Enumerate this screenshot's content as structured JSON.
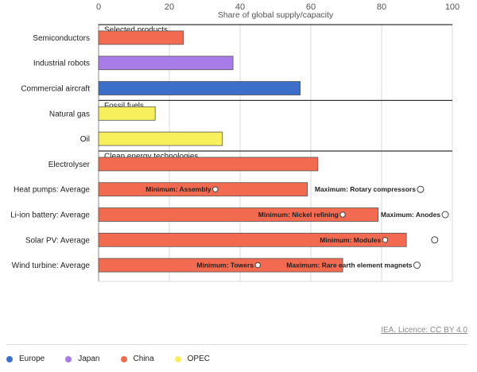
{
  "chart_data": {
    "type": "bar",
    "orientation": "horizontal",
    "xlabel": "Share of global supply/capacity",
    "xlim": [
      0,
      100
    ],
    "xticks": [
      0,
      20,
      40,
      60,
      80,
      100
    ],
    "grid": true,
    "groups": [
      {
        "label": "Selected products",
        "items": [
          {
            "category": "Semiconductors",
            "value": 24,
            "region": "China"
          },
          {
            "category": "Industrial robots",
            "value": 38,
            "region": "Japan"
          },
          {
            "category": "Commercial aircraft",
            "value": 57,
            "region": "Europe"
          }
        ]
      },
      {
        "label": "Fossil fuels",
        "items": [
          {
            "category": "Natural gas",
            "value": 16,
            "region": "OPEC"
          },
          {
            "category": "Oil",
            "value": 35,
            "region": "OPEC"
          }
        ]
      },
      {
        "label": "Clean energy technologies",
        "items": [
          {
            "category": "Electrolyser",
            "value": 62,
            "region": "China"
          },
          {
            "category": "Heat pumps: Average",
            "value": 59,
            "region": "China",
            "min": {
              "label": "Minimum: Assembly",
              "value": 33
            },
            "max": {
              "label": "Maximum: Rotary compressors",
              "value": 91
            }
          },
          {
            "category": "Li-ion battery: Average",
            "value": 79,
            "region": "China",
            "min": {
              "label": "Minimum: Nickel refining",
              "value": 69
            },
            "max": {
              "label": "Maximum: Anodes",
              "value": 98
            }
          },
          {
            "category": "Solar PV: Average",
            "value": 87,
            "region": "China",
            "min": {
              "label": "Minimum: Modules",
              "value": 81
            },
            "max": {
              "label": "",
              "value": 95
            }
          },
          {
            "category": "Wind turbine: Average",
            "value": 69,
            "region": "China",
            "min": {
              "label": "Minimum: Towers",
              "value": 45
            },
            "max": {
              "label": "Maximum: Rare earth element magnets",
              "value": 90
            }
          }
        ]
      }
    ],
    "legend": {
      "placement": "bottom-left",
      "entries": [
        {
          "name": "Europe",
          "color": "#3b6fc9"
        },
        {
          "name": "Japan",
          "color": "#a77be8"
        },
        {
          "name": "China",
          "color": "#f26a50"
        },
        {
          "name": "OPEC",
          "color": "#f7ef5c"
        }
      ]
    }
  },
  "source_text": "IEA. Licence: CC BY 4.0"
}
